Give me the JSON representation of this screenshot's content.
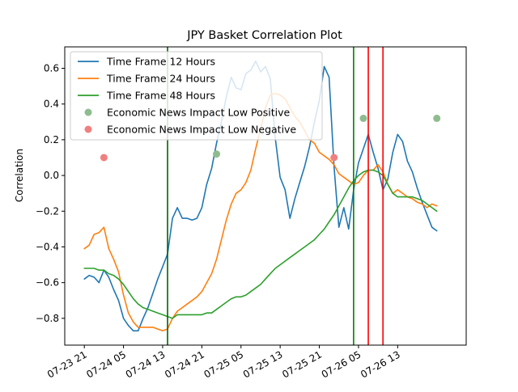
{
  "chart_data": {
    "type": "line",
    "title": "JPY Basket Correlation Plot",
    "xlabel": "",
    "ylabel": "Correlation",
    "ylim": [
      -0.95,
      0.72
    ],
    "yticks": [
      -0.8,
      -0.6,
      -0.4,
      -0.2,
      0.0,
      0.2,
      0.4,
      0.6
    ],
    "ytick_labels": [
      "−0.8",
      "−0.6",
      "−0.4",
      "−0.2",
      "0.0",
      "0.2",
      "0.4",
      "0.6"
    ],
    "xlim": [
      -4.0,
      78.0
    ],
    "xticks": [
      0,
      8,
      16,
      24,
      32,
      40,
      48,
      56,
      64
    ],
    "xtick_labels": [
      "07-23 21",
      "07-24 05",
      "07-24 13",
      "07-24 21",
      "07-25 05",
      "07-25 13",
      "07-25 21",
      "07-26 05",
      "07-26 13"
    ],
    "grid": false,
    "legend_position": "top-left",
    "series": [
      {
        "name": "Time Frame 12 Hours",
        "color": "#1f77b4",
        "x": [
          0,
          1,
          2,
          3,
          4,
          5,
          6,
          7,
          8,
          9,
          10,
          11,
          12,
          13,
          14,
          15,
          16,
          17,
          18,
          19,
          20,
          21,
          22,
          23,
          24,
          25,
          26,
          27,
          28,
          29,
          30,
          31,
          32,
          33,
          34,
          35,
          36,
          37,
          38,
          39,
          40,
          41,
          42,
          43,
          44,
          45,
          46,
          47,
          48,
          49,
          50,
          51,
          52,
          53,
          54,
          55,
          56,
          57,
          58,
          59,
          60,
          61,
          62,
          63,
          64,
          65,
          66,
          67,
          68,
          69,
          70,
          71,
          72
        ],
        "y": [
          -0.58,
          -0.56,
          -0.57,
          -0.6,
          -0.53,
          -0.57,
          -0.64,
          -0.7,
          -0.8,
          -0.84,
          -0.87,
          -0.87,
          -0.8,
          -0.74,
          -0.66,
          -0.58,
          -0.51,
          -0.44,
          -0.24,
          -0.18,
          -0.24,
          -0.24,
          -0.25,
          -0.24,
          -0.18,
          -0.05,
          0.04,
          0.18,
          0.3,
          0.44,
          0.55,
          0.49,
          0.48,
          0.57,
          0.59,
          0.64,
          0.58,
          0.61,
          0.54,
          0.21,
          -0.01,
          -0.08,
          -0.24,
          -0.13,
          -0.04,
          0.05,
          0.16,
          0.3,
          0.42,
          0.61,
          0.55,
          0.05,
          -0.29,
          -0.18,
          -0.3,
          -0.08,
          0.07,
          0.15,
          0.23,
          0.13,
          0.04,
          -0.08,
          -0.02,
          0.13,
          0.23,
          0.19,
          0.08,
          0.02,
          -0.07,
          -0.15,
          -0.22,
          -0.29,
          -0.31
        ]
      },
      {
        "name": "Time Frame 24 Hours",
        "color": "#ff7f0e",
        "x": [
          0,
          1,
          2,
          3,
          4,
          5,
          6,
          7,
          8,
          9,
          10,
          11,
          12,
          13,
          14,
          15,
          16,
          17,
          18,
          19,
          20,
          21,
          22,
          23,
          24,
          25,
          26,
          27,
          28,
          29,
          30,
          31,
          32,
          33,
          34,
          35,
          36,
          37,
          38,
          39,
          40,
          41,
          42,
          43,
          44,
          45,
          46,
          47,
          48,
          49,
          50,
          51,
          52,
          53,
          54,
          55,
          56,
          57,
          58,
          59,
          60,
          61,
          62,
          63,
          64,
          65,
          66,
          67,
          68,
          69,
          70,
          71,
          72
        ],
        "y": [
          -0.41,
          -0.39,
          -0.33,
          -0.32,
          -0.29,
          -0.41,
          -0.47,
          -0.54,
          -0.67,
          -0.77,
          -0.82,
          -0.85,
          -0.85,
          -0.85,
          -0.85,
          -0.86,
          -0.87,
          -0.86,
          -0.8,
          -0.76,
          -0.74,
          -0.72,
          -0.7,
          -0.68,
          -0.65,
          -0.6,
          -0.55,
          -0.47,
          -0.36,
          -0.25,
          -0.16,
          -0.1,
          -0.08,
          -0.04,
          0.03,
          0.15,
          0.26,
          0.38,
          0.45,
          0.46,
          0.45,
          0.43,
          0.38,
          0.33,
          0.3,
          0.25,
          0.2,
          0.18,
          0.13,
          0.11,
          0.09,
          0.06,
          0.01,
          -0.01,
          -0.03,
          -0.05,
          -0.04,
          0.0,
          0.03,
          0.03,
          0.06,
          0.02,
          -0.05,
          -0.1,
          -0.08,
          -0.1,
          -0.12,
          -0.13,
          -0.15,
          -0.16,
          -0.18,
          -0.16,
          -0.17
        ]
      },
      {
        "name": "Time Frame 48 Hours",
        "color": "#2ca02c",
        "x": [
          0,
          1,
          2,
          3,
          4,
          5,
          6,
          7,
          8,
          9,
          10,
          11,
          12,
          13,
          14,
          15,
          16,
          17,
          18,
          19,
          20,
          21,
          22,
          23,
          24,
          25,
          26,
          27,
          28,
          29,
          30,
          31,
          32,
          33,
          34,
          35,
          36,
          37,
          38,
          39,
          40,
          41,
          42,
          43,
          44,
          45,
          46,
          47,
          48,
          49,
          50,
          51,
          52,
          53,
          54,
          55,
          56,
          57,
          58,
          59,
          60,
          61,
          62,
          63,
          64,
          65,
          66,
          67,
          68,
          69,
          70,
          71,
          72
        ],
        "y": [
          -0.52,
          -0.52,
          -0.52,
          -0.53,
          -0.53,
          -0.55,
          -0.56,
          -0.58,
          -0.61,
          -0.65,
          -0.69,
          -0.72,
          -0.74,
          -0.75,
          -0.76,
          -0.77,
          -0.78,
          -0.79,
          -0.8,
          -0.78,
          -0.78,
          -0.78,
          -0.78,
          -0.78,
          -0.78,
          -0.77,
          -0.77,
          -0.75,
          -0.73,
          -0.71,
          -0.69,
          -0.68,
          -0.68,
          -0.67,
          -0.65,
          -0.63,
          -0.61,
          -0.58,
          -0.55,
          -0.52,
          -0.5,
          -0.48,
          -0.46,
          -0.44,
          -0.42,
          -0.4,
          -0.38,
          -0.36,
          -0.33,
          -0.3,
          -0.26,
          -0.22,
          -0.17,
          -0.12,
          -0.07,
          -0.03,
          0.0,
          0.02,
          0.03,
          0.03,
          0.02,
          0.0,
          -0.05,
          -0.1,
          -0.12,
          -0.12,
          -0.12,
          -0.12,
          -0.13,
          -0.14,
          -0.16,
          -0.18,
          -0.2
        ]
      }
    ],
    "markers": [
      {
        "name": "Economic News Impact Low Positive",
        "color": "#8fbc8f",
        "points": [
          {
            "x": 27,
            "y": 0.12
          },
          {
            "x": 57,
            "y": 0.32
          },
          {
            "x": 72,
            "y": 0.32
          }
        ]
      },
      {
        "name": "Economic News Impact Low Negative",
        "color": "#f08080",
        "points": [
          {
            "x": 4,
            "y": 0.1
          },
          {
            "x": 51,
            "y": 0.1
          }
        ]
      }
    ],
    "vertical_lines": [
      {
        "x": 17,
        "color": "#006400"
      },
      {
        "x": 55,
        "color": "#008000"
      },
      {
        "x": 58,
        "color": "#ff0000"
      },
      {
        "x": 61,
        "color": "#ff0000"
      }
    ]
  }
}
